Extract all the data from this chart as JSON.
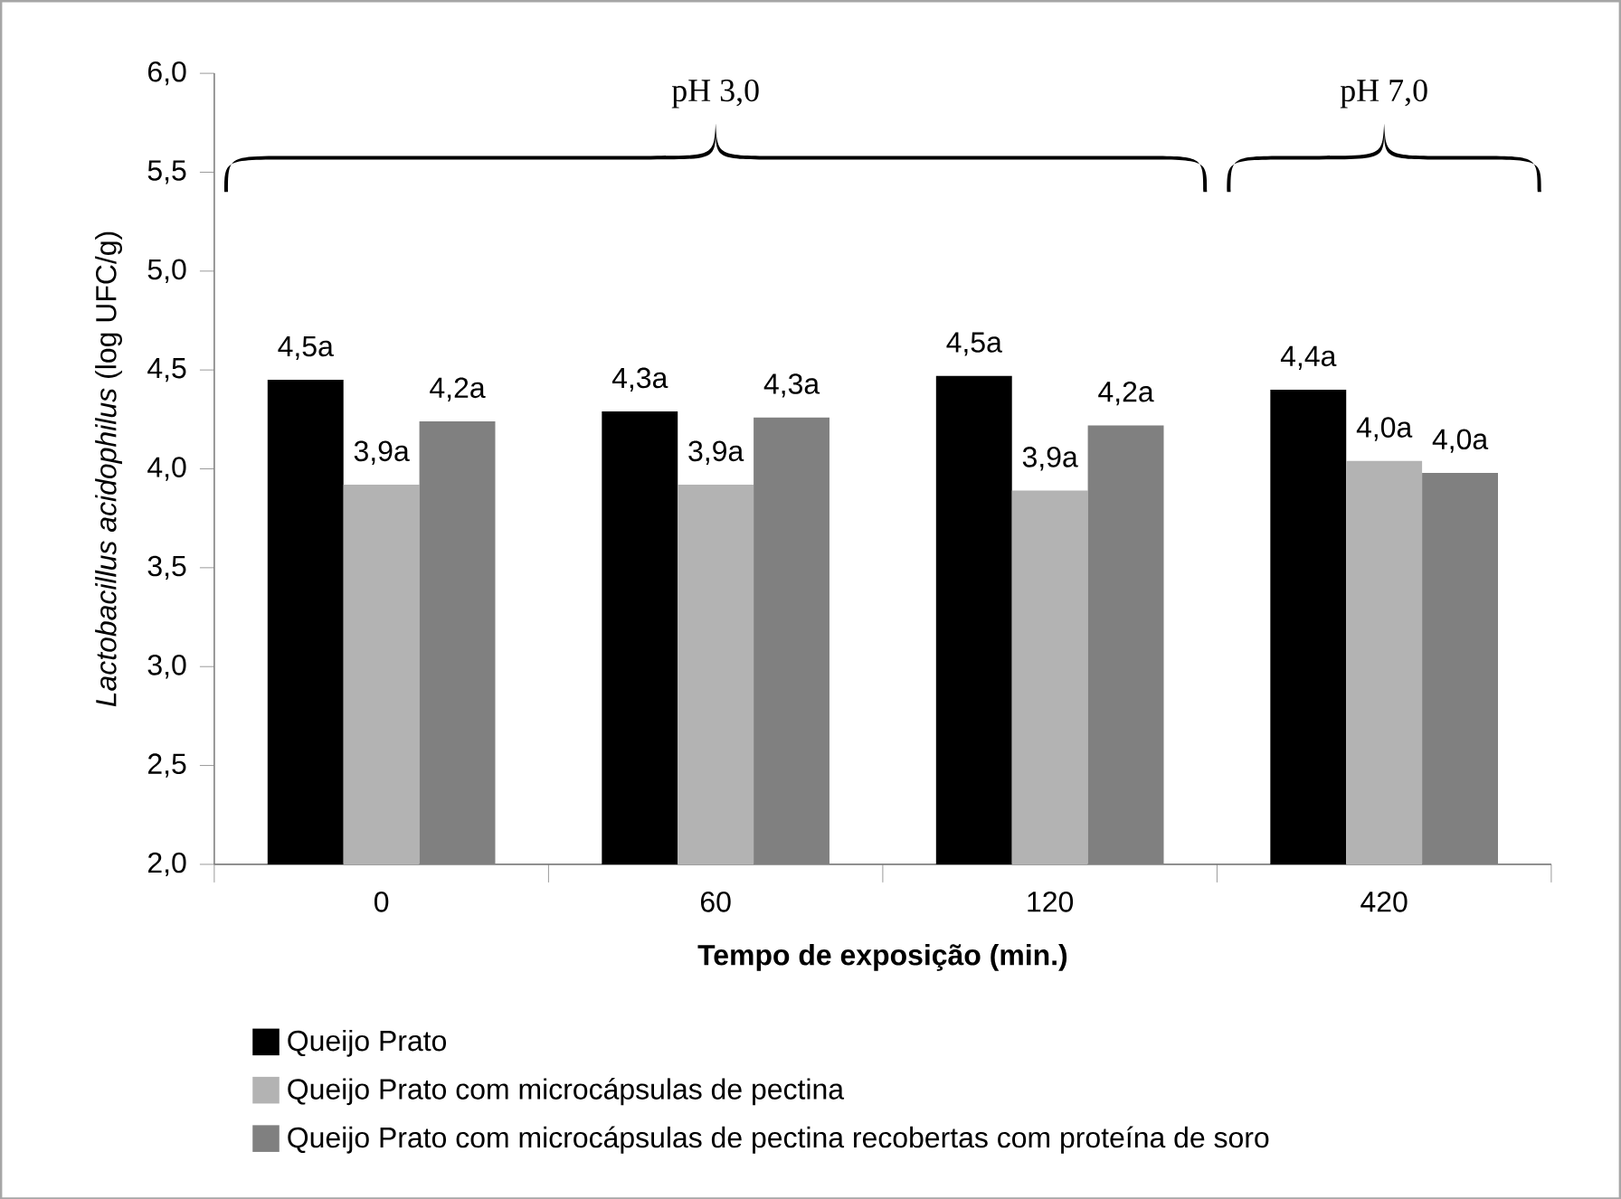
{
  "chart_data": {
    "type": "bar",
    "xlabel": "**Tempo de exposição  (min.)**",
    "ylabel": "*Lactobacillus acidophilus* (log UFC/g)",
    "categories": [
      "0",
      "60",
      "120",
      "420"
    ],
    "series": [
      {
        "name": "Queijo Prato",
        "color": "#000000",
        "values": [
          4.45,
          4.29,
          4.47,
          4.4
        ],
        "value_labels": [
          "4,5a",
          "4,3a",
          "4,5a",
          "4,4a"
        ]
      },
      {
        "name": "Queijo Prato com microcápsulas de pectina",
        "color": "#b3b3b3",
        "values": [
          3.92,
          3.92,
          3.89,
          4.04
        ],
        "value_labels": [
          "3,9a",
          "3,9a",
          "3,9a",
          "4,0a"
        ]
      },
      {
        "name": "Queijo Prato com microcápsulas de pectina recobertas com proteína de soro",
        "color": "#808080",
        "values": [
          4.24,
          4.26,
          4.22,
          3.98
        ],
        "value_labels": [
          "4,2a",
          "4,3a",
          "4,2a",
          "4,0a"
        ]
      }
    ],
    "ylim": [
      2.0,
      6.0
    ],
    "yticks": [
      {
        "value": 2.0,
        "label": "2,0"
      },
      {
        "value": 2.5,
        "label": "2,5"
      },
      {
        "value": 3.0,
        "label": "3,0"
      },
      {
        "value": 3.5,
        "label": "3,5"
      },
      {
        "value": 4.0,
        "label": "4,0"
      },
      {
        "value": 4.5,
        "label": "4,5"
      },
      {
        "value": 5.0,
        "label": "5,0"
      },
      {
        "value": 5.5,
        "label": "5,5"
      },
      {
        "value": 6.0,
        "label": "6,0"
      }
    ],
    "annotations": [
      "pH 3,0",
      "pH 7,0"
    ],
    "grid": false,
    "legend": "bottom"
  }
}
